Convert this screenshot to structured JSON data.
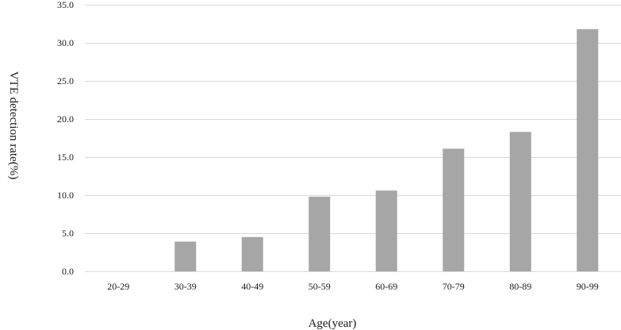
{
  "chart_data": {
    "type": "bar",
    "title": "",
    "xlabel": "Age(year)",
    "ylabel": "VTE detection rate(%)",
    "categories": [
      "20-29",
      "30-39",
      "40-49",
      "50-59",
      "60-69",
      "70-79",
      "80-89",
      "90-99"
    ],
    "values": [
      0.0,
      3.9,
      4.5,
      9.8,
      10.6,
      16.1,
      18.3,
      31.8
    ],
    "ylim": [
      0,
      35
    ],
    "yticks": [
      "0.0",
      "5.0",
      "10.0",
      "15.0",
      "20.0",
      "25.0",
      "30.0",
      "35.0"
    ],
    "grid": true,
    "legend": "none",
    "bar_color": "#a6a6a6",
    "grid_color": "#d9d9d9"
  }
}
